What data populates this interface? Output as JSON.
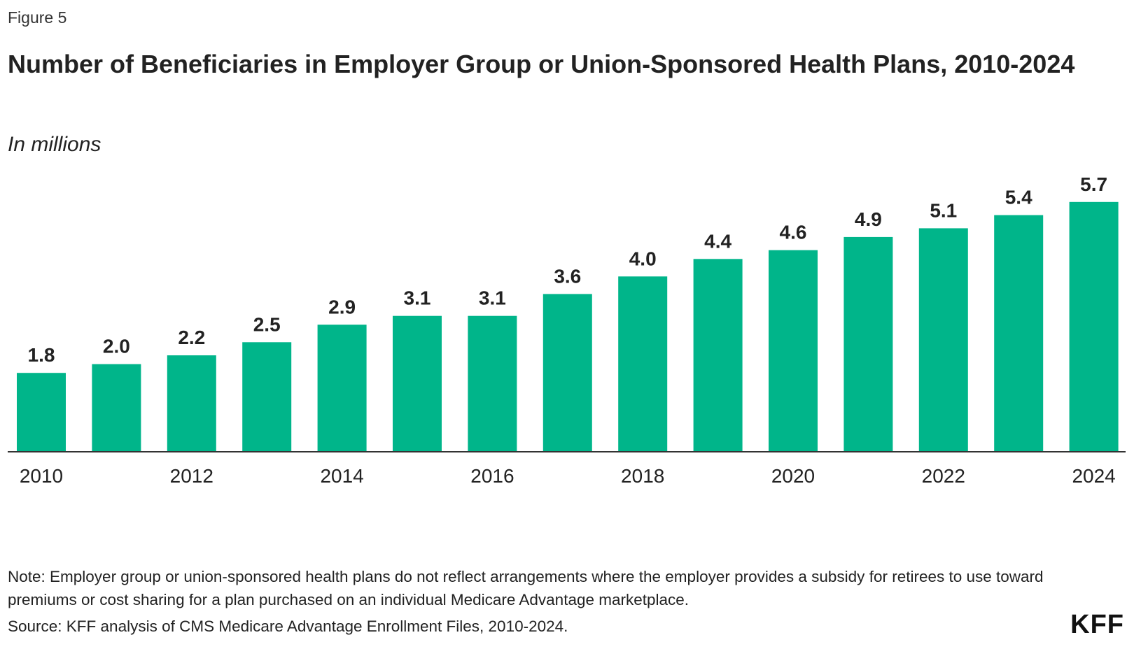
{
  "figure_label": "Figure 5",
  "title": "Number of Beneficiaries in Employer Group or Union-Sponsored Health Plans, 2010-2024",
  "subtitle": "In millions",
  "note": "Note: Employer group or union-sponsored health plans do not reflect arrangements where the employer provides a subsidy for retirees to use toward premiums or cost sharing for a plan purchased on an individual Medicare Advantage marketplace.",
  "source": "Source: KFF analysis of CMS Medicare Advantage Enrollment Files, 2010-2024.",
  "logo_text": "KFF",
  "colors": {
    "bar": "#00b58a",
    "axis": "#333333",
    "text": "#222222"
  },
  "chart_data": {
    "type": "bar",
    "title": "Number of Beneficiaries in Employer Group or Union-Sponsored Health Plans, 2010-2024",
    "subtitle": "In millions",
    "categories": [
      "2010",
      "2011",
      "2012",
      "2013",
      "2014",
      "2015",
      "2016",
      "2017",
      "2018",
      "2019",
      "2020",
      "2021",
      "2022",
      "2023",
      "2024"
    ],
    "values": [
      1.8,
      2.0,
      2.2,
      2.5,
      2.9,
      3.1,
      3.1,
      3.6,
      4.0,
      4.4,
      4.6,
      4.9,
      5.1,
      5.4,
      5.7
    ],
    "value_labels": [
      "1.8",
      "2.0",
      "2.2",
      "2.5",
      "2.9",
      "3.1",
      "3.1",
      "3.6",
      "4.0",
      "4.4",
      "4.6",
      "4.9",
      "5.1",
      "5.4",
      "5.7"
    ],
    "tick_labels": [
      "2010",
      "",
      "2012",
      "",
      "2014",
      "",
      "2016",
      "",
      "2018",
      "",
      "2020",
      "",
      "2022",
      "",
      "2024"
    ],
    "xlabel": "",
    "ylabel": "",
    "ylim": [
      0,
      6
    ],
    "grid": false,
    "legend": "none"
  }
}
